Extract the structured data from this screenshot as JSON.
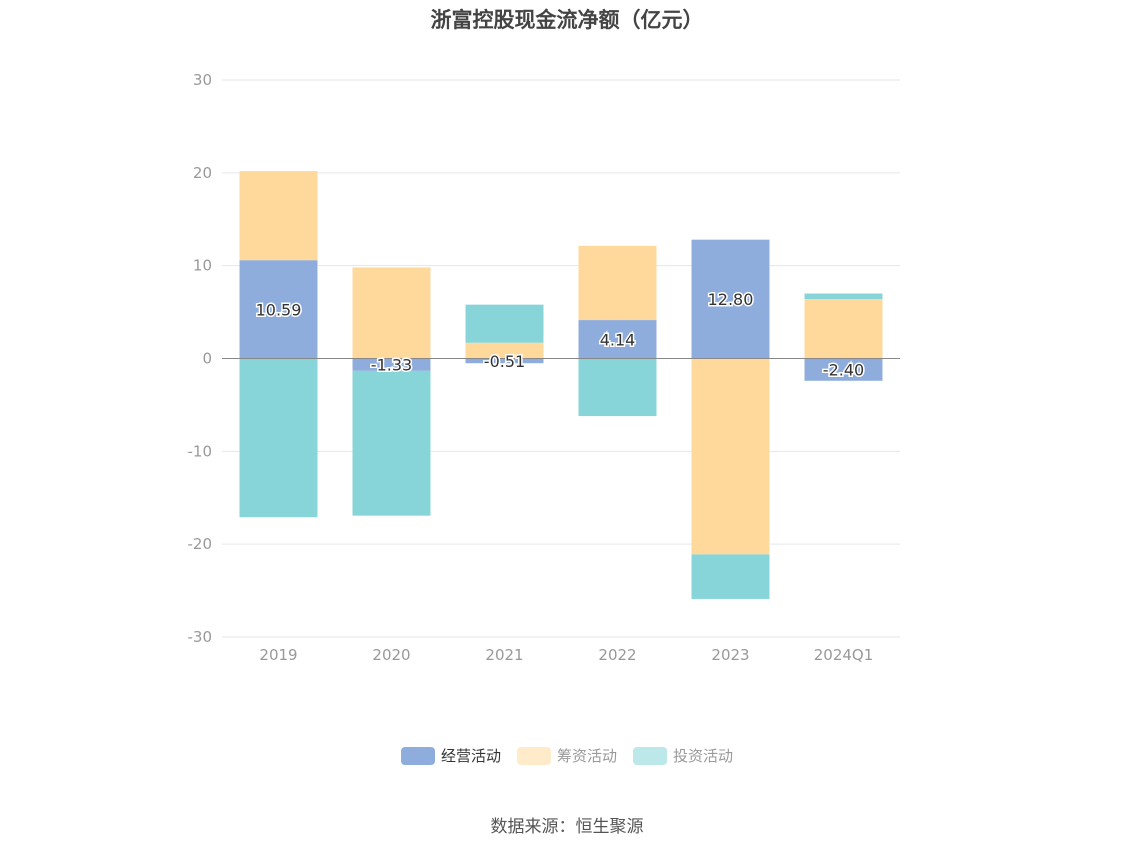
{
  "chart_data": {
    "type": "bar",
    "stacked": true,
    "title": "浙富控股现金流净额（亿元）",
    "categories": [
      "2019",
      "2020",
      "2021",
      "2022",
      "2023",
      "2024Q1"
    ],
    "series": [
      {
        "name": "经营活动",
        "color": "#8EADDC",
        "values": [
          10.59,
          -1.33,
          -0.51,
          4.14,
          12.8,
          -2.4
        ],
        "labels": [
          "10.59",
          "-1.33",
          "-0.51",
          "4.14",
          "12.80",
          "-2.40"
        ]
      },
      {
        "name": "筹资活动",
        "color": "#FFD99C",
        "values": [
          9.6,
          9.8,
          1.7,
          8.0,
          -21.1,
          6.4
        ]
      },
      {
        "name": "投资活动",
        "color": "#87D5D9",
        "values": [
          -17.1,
          -15.6,
          4.1,
          -6.2,
          -4.8,
          0.6
        ]
      }
    ],
    "ylim": [
      -30,
      30
    ],
    "yticks": [
      "30",
      "20",
      "10",
      "0",
      "-10",
      "-20",
      "-30"
    ],
    "grid": true,
    "legend_position": "bottom-center",
    "source": "数据来源：恒生聚源"
  }
}
